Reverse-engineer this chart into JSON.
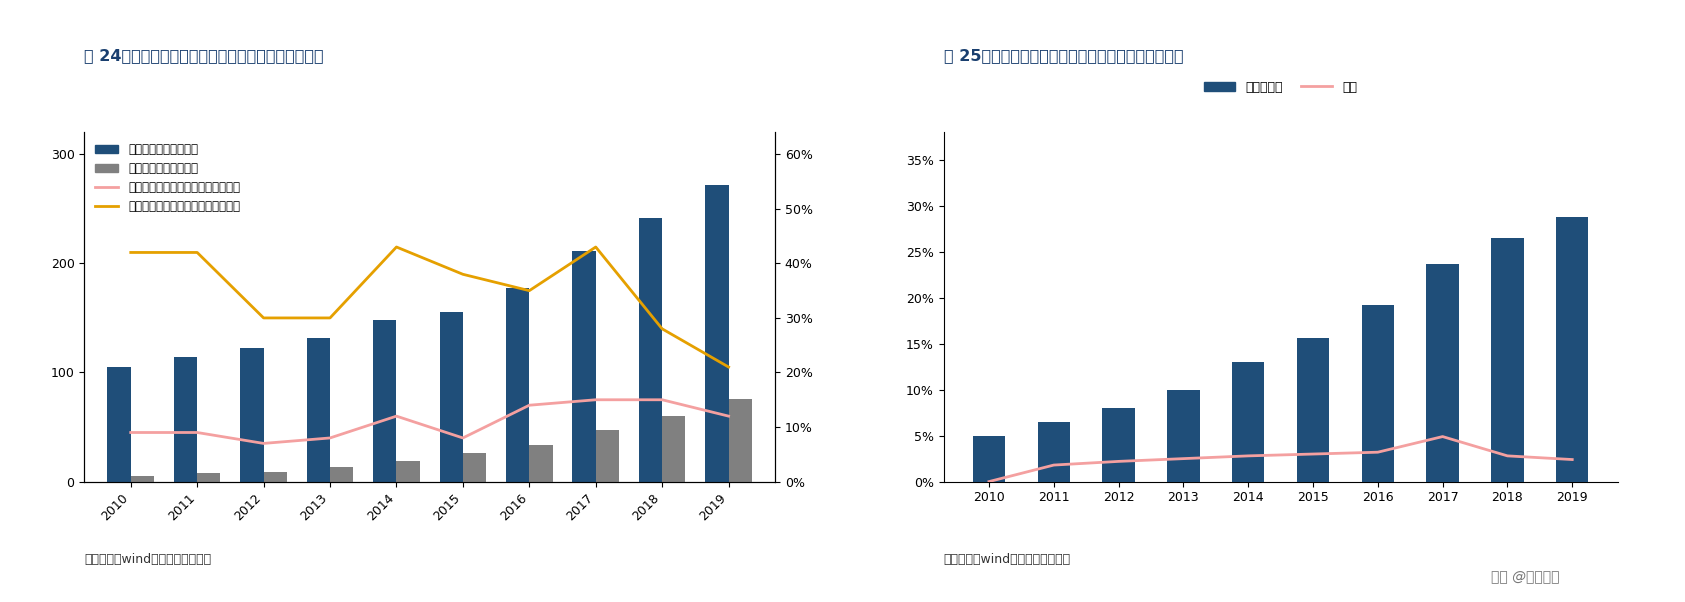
{
  "years": [
    2010,
    2011,
    2012,
    2013,
    2014,
    2015,
    2016,
    2017,
    2018,
    2019
  ],
  "chart1": {
    "title": "图 24：全球和国内工业机器人保有量（单位：万台）",
    "global_stock": [
      105,
      114,
      122,
      132,
      148,
      155,
      177,
      211,
      242,
      272
    ],
    "china_stock": [
      5,
      8,
      9,
      13,
      19,
      26,
      34,
      47,
      60,
      76
    ],
    "global_growth": [
      9,
      9,
      7,
      8,
      12,
      8,
      14,
      15,
      15,
      12
    ],
    "china_growth": [
      42,
      42,
      30,
      30,
      43,
      38,
      35,
      43,
      28,
      21
    ],
    "legend_labels": [
      "全球工业机器人保有量",
      "中国工业机器人保有量",
      "全球工业机器人保有量增速（右轴）",
      "中国工业机器人保有量增速（右轴）"
    ],
    "bar_color_global": "#1f4e79",
    "bar_color_china": "#808080",
    "line_color_global": "#f4a0a0",
    "line_color_china": "#e5a000",
    "ylim_left": [
      0,
      320
    ],
    "ylim_right": [
      0,
      0.64
    ],
    "yticks_left": [
      0,
      100,
      200,
      300
    ],
    "yticks_right": [
      0.0,
      0.1,
      0.2,
      0.3,
      0.4,
      0.5,
      0.6
    ],
    "source": "资料来源：wind，民生证券研究院"
  },
  "chart2": {
    "title": "图 25：全球和国内工业机器人保有量（单位：万台）",
    "china_share": [
      0.05,
      0.065,
      0.08,
      0.1,
      0.13,
      0.156,
      0.192,
      0.237,
      0.265,
      0.288
    ],
    "growth_rate": [
      0.0,
      0.018,
      0.022,
      0.025,
      0.028,
      0.03,
      0.032,
      0.049,
      0.028,
      0.024
    ],
    "legend_labels": [
      "保有量占比",
      "增速"
    ],
    "bar_color": "#1f4e79",
    "line_color": "#f4a0a0",
    "ylim": [
      0,
      0.38
    ],
    "yticks": [
      0,
      0.05,
      0.1,
      0.15,
      0.2,
      0.25,
      0.3,
      0.35
    ],
    "source": "资料来源：wind，民生证券研究院"
  },
  "bg_color": "#ffffff",
  "title_color": "#1a3f6f",
  "divider_color": "#1a3f6f",
  "watermark": "头条 @远瞻智库"
}
